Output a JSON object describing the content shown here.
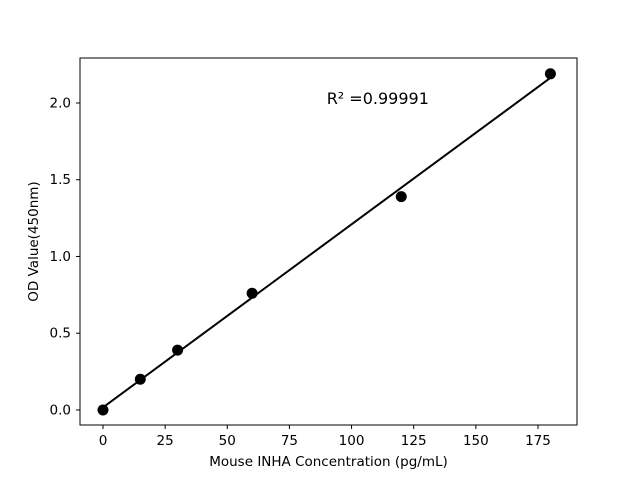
{
  "chart_data": {
    "type": "scatter",
    "title": "",
    "xlabel": "Mouse INHA Concentration (pg/mL)",
    "ylabel": "OD Value(450nm)",
    "x": [
      0,
      15,
      30,
      60,
      120,
      180
    ],
    "y": [
      0.0,
      0.2,
      0.39,
      0.76,
      1.39,
      2.19
    ],
    "trendline": {
      "type": "linear_regression",
      "extent": [
        0,
        180
      ]
    },
    "annotation": {
      "text": "R² =0.99991",
      "x": 90,
      "y": 2.03
    },
    "x_ticks": {
      "values": [
        0,
        25,
        50,
        75,
        100,
        125,
        150,
        175
      ],
      "labels": [
        "0",
        "25",
        "50",
        "75",
        "100",
        "125",
        "150",
        "175"
      ]
    },
    "y_ticks": {
      "values": [
        0,
        0.5,
        1.0,
        1.5,
        2.0
      ],
      "labels": [
        "0.0",
        "0.5",
        "1.0",
        "1.5",
        "2.0"
      ]
    },
    "xlim": [
      -9.25,
      190.7
    ],
    "ylim": [
      -0.098,
      2.293
    ],
    "grid": false,
    "legend": false,
    "colors": {
      "marker": "#000000",
      "line": "#000000",
      "text": "#000000",
      "spine": "#000000",
      "background": "#ffffff"
    }
  }
}
